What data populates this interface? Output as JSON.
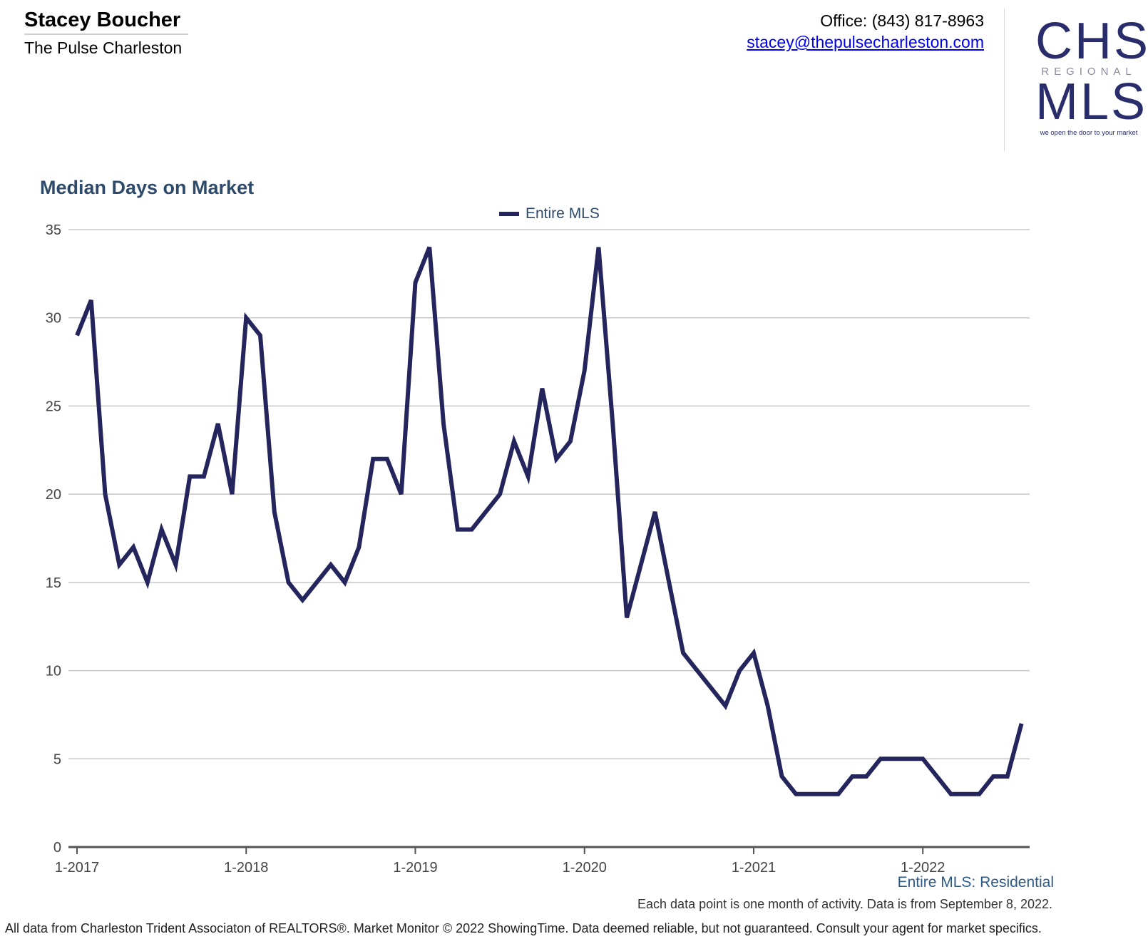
{
  "agent": {
    "name": "Stacey Boucher",
    "company": "The Pulse Charleston",
    "office": "Office: (843) 817-8963",
    "email": "stacey@thepulsecharleston.com"
  },
  "logo": {
    "line1": "CHS",
    "line2": "REGIONAL",
    "line3": "MLS",
    "tagline": "we open the door to your market"
  },
  "colors": {
    "series": "#25255e",
    "title": "#2e4a6b",
    "grid": "#c8c8c8",
    "axis": "#555555"
  },
  "chart_data": {
    "type": "line",
    "title": "Median Days on Market",
    "xlabel": "",
    "ylabel": "",
    "ylim": [
      0,
      35
    ],
    "yticks": [
      0,
      5,
      10,
      15,
      20,
      25,
      30,
      35
    ],
    "xtick_labels": [
      "1-2017",
      "1-2018",
      "1-2019",
      "1-2020",
      "1-2021",
      "1-2022"
    ],
    "grid": true,
    "legend_position": "top-center",
    "x_start": "1-2017",
    "x_end": "8-2022",
    "series": [
      {
        "name": "Entire MLS",
        "values": [
          29,
          31,
          20,
          16,
          17,
          15,
          18,
          16,
          21,
          21,
          24,
          20,
          30,
          29,
          19,
          15,
          14,
          15,
          16,
          15,
          17,
          22,
          22,
          20,
          32,
          34,
          24,
          18,
          18,
          19,
          20,
          23,
          21,
          26,
          22,
          23,
          27,
          34,
          24,
          13,
          16,
          19,
          15,
          11,
          10,
          9,
          8,
          10,
          11,
          8,
          4,
          3,
          3,
          3,
          3,
          4,
          4,
          5,
          5,
          5,
          5,
          4,
          3,
          3,
          3,
          4,
          4,
          7
        ]
      }
    ]
  },
  "footer": {
    "source": "Entire MLS: Residential",
    "note": "Each data point is one month of activity. Data is from September 8, 2022.",
    "disclaimer": "All data from Charleston Trident Associaton of REALTORS®. Market Monitor © 2022 ShowingTime. Data deemed reliable, but not guaranteed. Consult your agent for market specifics."
  }
}
